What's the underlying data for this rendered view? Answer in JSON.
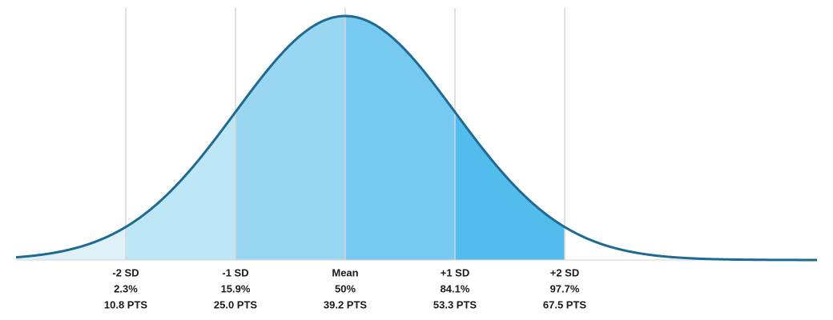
{
  "markers": [
    {
      "label": "-2 SD",
      "percentile": "2.3%",
      "points": "10.8 PTS"
    },
    {
      "label": "-1 SD",
      "percentile": "15.9%",
      "points": "25.0 PTS"
    },
    {
      "label": "Mean",
      "percentile": "50%",
      "points": "39.2 PTS"
    },
    {
      "label": "+1 SD",
      "percentile": "84.1%",
      "points": "53.3 PTS"
    },
    {
      "label": "+2 SD",
      "percentile": "97.7%",
      "points": "67.5 PTS"
    }
  ]
}
